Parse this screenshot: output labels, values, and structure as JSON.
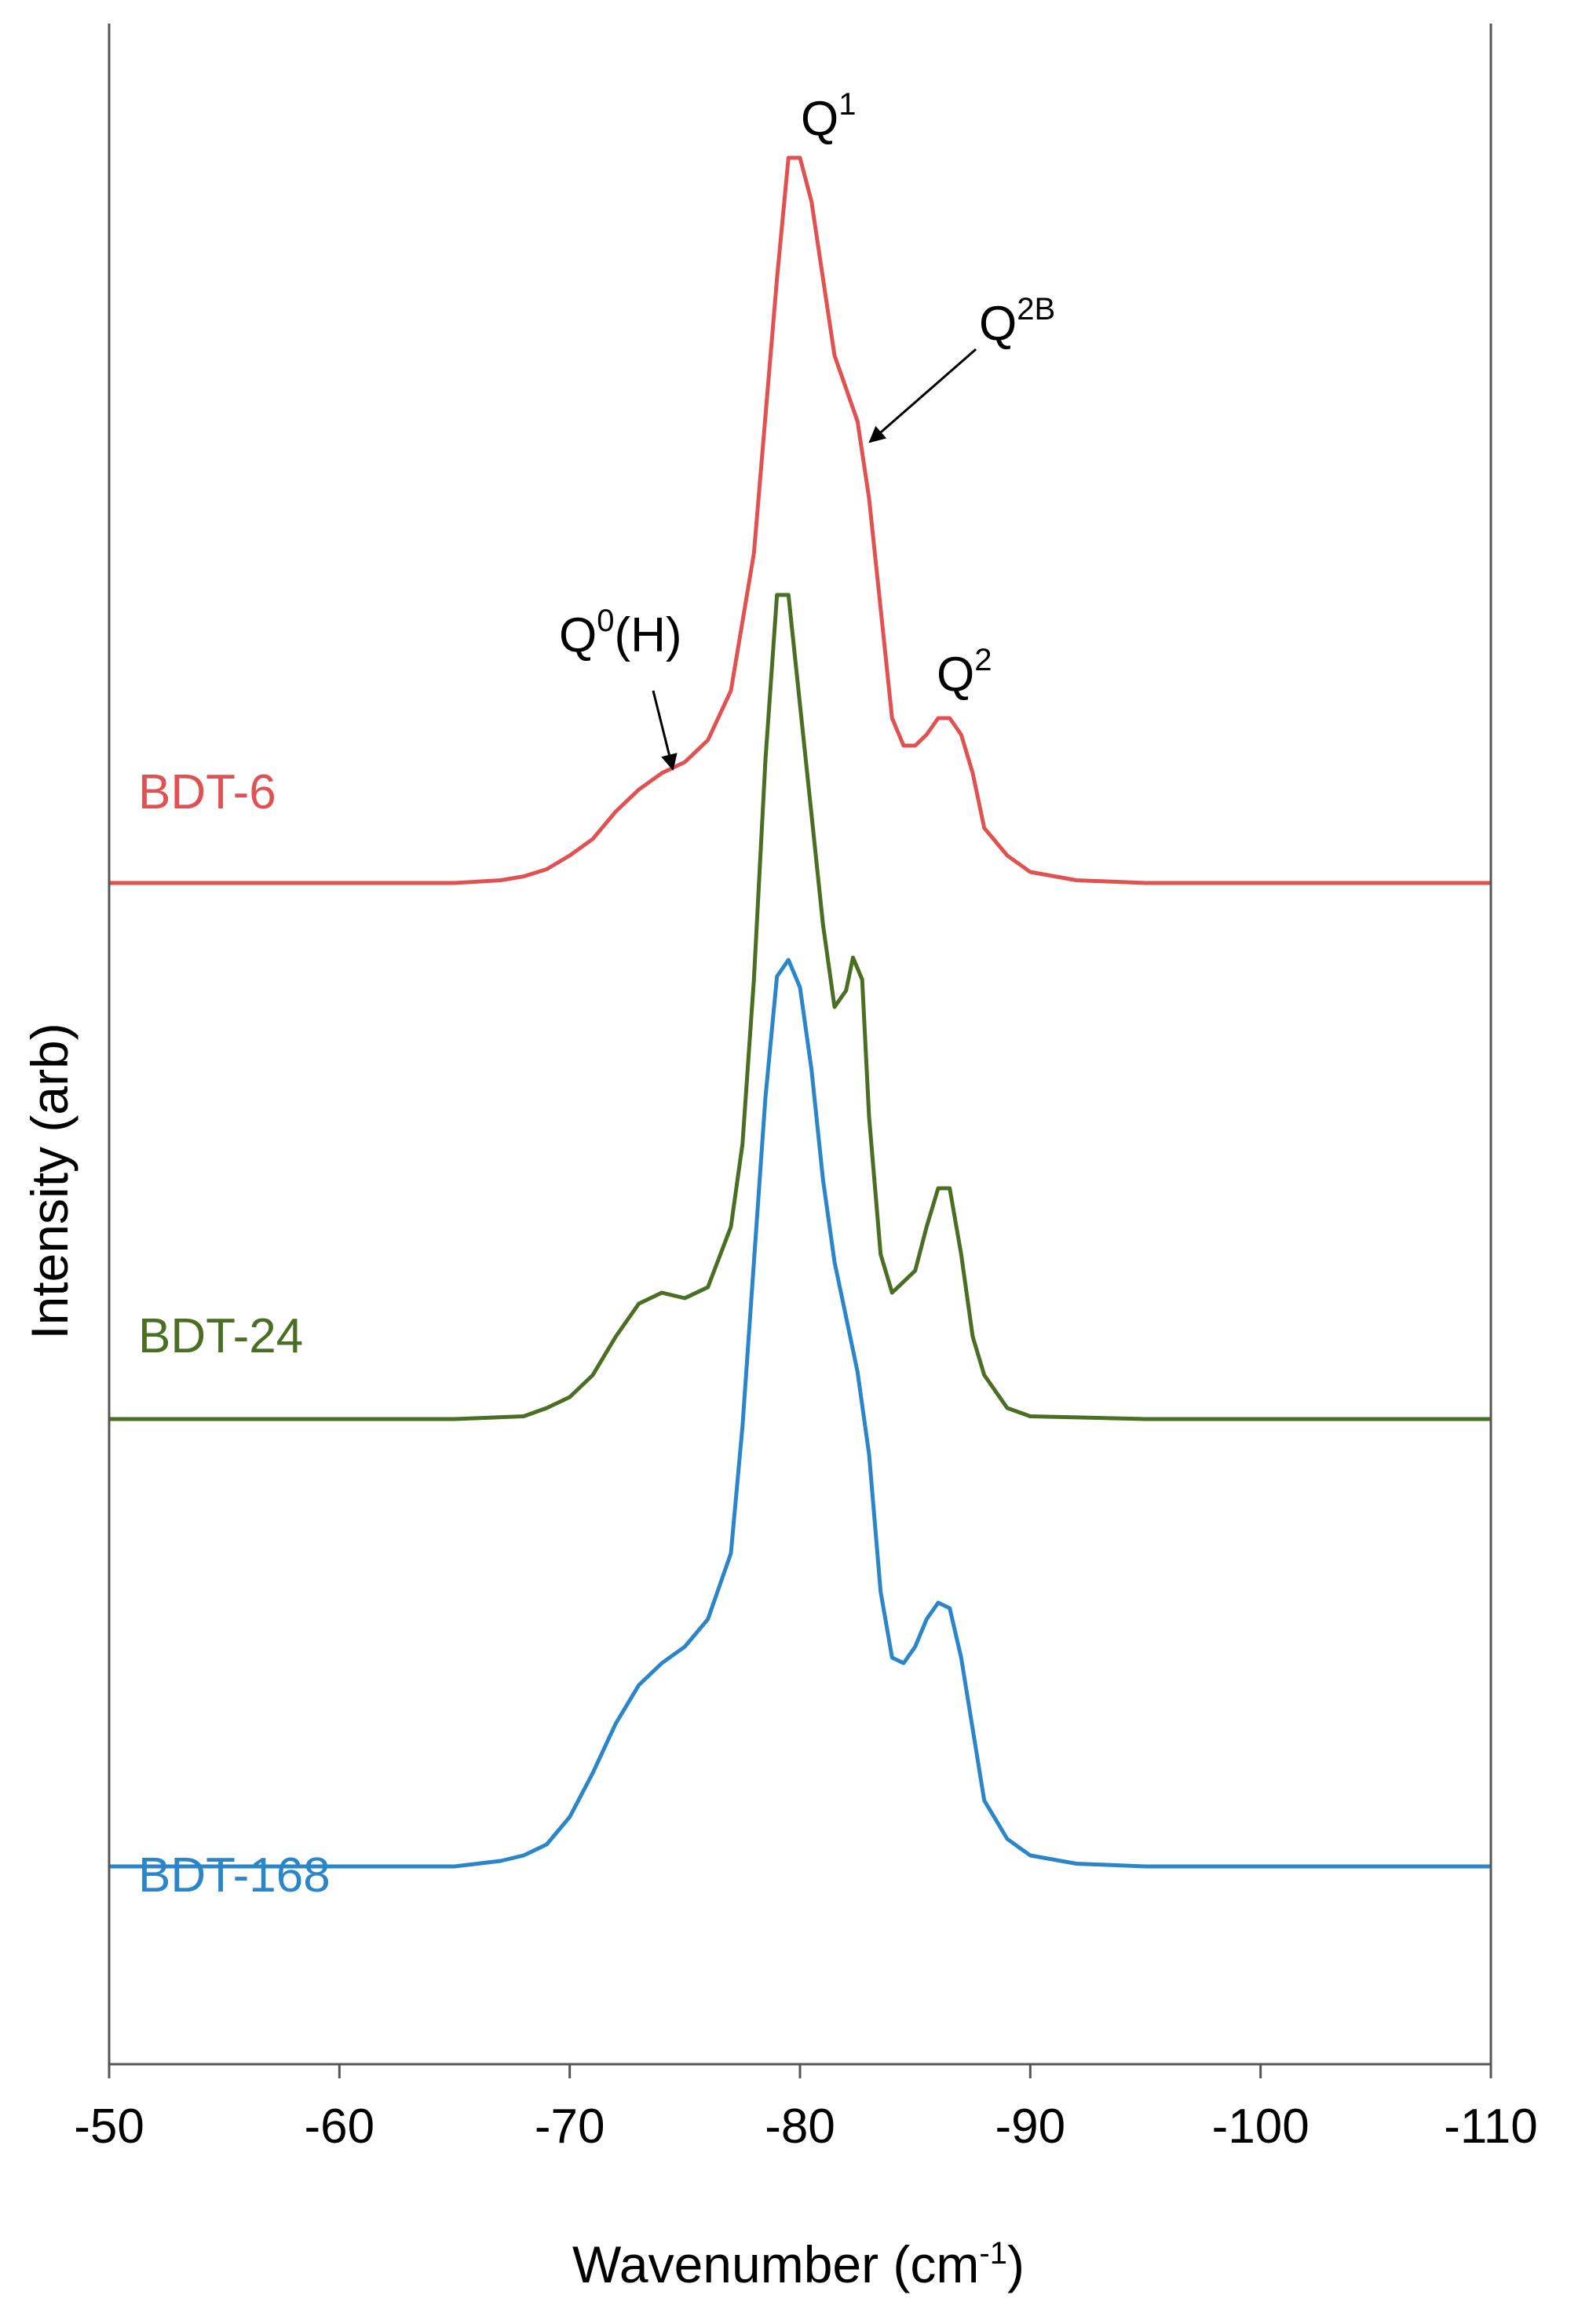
{
  "chart_data": {
    "type": "line",
    "title": "",
    "xlabel": "Wavenumber (cm",
    "xlabel_sup": "-1",
    "xlabel_end": ")",
    "ylabel": "Intensity (arb)",
    "xlim": [
      -50,
      -110
    ],
    "x_ticks": [
      -50,
      -60,
      -70,
      -80,
      -90,
      -100,
      -110
    ],
    "x_tick_labels": [
      "-50",
      "-60",
      "-70",
      "-80",
      "-90",
      "-100",
      "-110"
    ],
    "y_ticks_shown": false,
    "grid": false,
    "legend": "none",
    "series": [
      {
        "name": "BDT-6",
        "color": "#e05252",
        "offset": 2,
        "points": [
          [
            -50,
            0
          ],
          [
            -55,
            0
          ],
          [
            -60,
            0
          ],
          [
            -65,
            0
          ],
          [
            -67,
            0.005
          ],
          [
            -68,
            0.012
          ],
          [
            -69,
            0.025
          ],
          [
            -70,
            0.05
          ],
          [
            -71,
            0.08
          ],
          [
            -72,
            0.13
          ],
          [
            -73,
            0.17
          ],
          [
            -74,
            0.2
          ],
          [
            -75,
            0.22
          ],
          [
            -76,
            0.26
          ],
          [
            -77,
            0.35
          ],
          [
            -78,
            0.6
          ],
          [
            -78.5,
            0.85
          ],
          [
            -79,
            1.1
          ],
          [
            -79.5,
            1.32
          ],
          [
            -80,
            1.32
          ],
          [
            -80.5,
            1.24
          ],
          [
            -81,
            1.1
          ],
          [
            -81.5,
            0.96
          ],
          [
            -82,
            0.9
          ],
          [
            -82.5,
            0.84
          ],
          [
            -83,
            0.7
          ],
          [
            -83.5,
            0.5
          ],
          [
            -84,
            0.3
          ],
          [
            -84.5,
            0.25
          ],
          [
            -85,
            0.25
          ],
          [
            -85.5,
            0.27
          ],
          [
            -86,
            0.3
          ],
          [
            -86.5,
            0.3
          ],
          [
            -87,
            0.27
          ],
          [
            -87.5,
            0.2
          ],
          [
            -88,
            0.1
          ],
          [
            -89,
            0.05
          ],
          [
            -90,
            0.02
          ],
          [
            -92,
            0.005
          ],
          [
            -95,
            0
          ],
          [
            -100,
            0
          ],
          [
            -105,
            0
          ],
          [
            -110,
            0
          ]
        ]
      },
      {
        "name": "BDT-24",
        "color": "#4a6e22",
        "offset": 1,
        "points": [
          [
            -50,
            0
          ],
          [
            -55,
            0
          ],
          [
            -60,
            0
          ],
          [
            -65,
            0
          ],
          [
            -68,
            0.005
          ],
          [
            -69,
            0.02
          ],
          [
            -70,
            0.04
          ],
          [
            -71,
            0.08
          ],
          [
            -72,
            0.15
          ],
          [
            -73,
            0.21
          ],
          [
            -74,
            0.23
          ],
          [
            -75,
            0.22
          ],
          [
            -76,
            0.24
          ],
          [
            -77,
            0.35
          ],
          [
            -77.5,
            0.5
          ],
          [
            -78,
            0.8
          ],
          [
            -78.5,
            1.2
          ],
          [
            -79,
            1.5
          ],
          [
            -79.5,
            1.5
          ],
          [
            -80,
            1.3
          ],
          [
            -80.5,
            1.1
          ],
          [
            -81,
            0.9
          ],
          [
            -81.5,
            0.75
          ],
          [
            -82,
            0.78
          ],
          [
            -82.3,
            0.84
          ],
          [
            -82.7,
            0.8
          ],
          [
            -83,
            0.55
          ],
          [
            -83.5,
            0.3
          ],
          [
            -84,
            0.23
          ],
          [
            -85,
            0.27
          ],
          [
            -85.5,
            0.35
          ],
          [
            -86,
            0.42
          ],
          [
            -86.5,
            0.42
          ],
          [
            -87,
            0.3
          ],
          [
            -87.5,
            0.15
          ],
          [
            -88,
            0.08
          ],
          [
            -89,
            0.02
          ],
          [
            -90,
            0.005
          ],
          [
            -95,
            0
          ],
          [
            -100,
            0
          ],
          [
            -105,
            0
          ],
          [
            -110,
            0
          ]
        ]
      },
      {
        "name": "BDT-168",
        "color": "#2a86c8",
        "offset": 0,
        "points": [
          [
            -50,
            0
          ],
          [
            -55,
            0
          ],
          [
            -60,
            0
          ],
          [
            -65,
            0
          ],
          [
            -67,
            0.01
          ],
          [
            -68,
            0.02
          ],
          [
            -69,
            0.04
          ],
          [
            -70,
            0.09
          ],
          [
            -71,
            0.17
          ],
          [
            -72,
            0.26
          ],
          [
            -73,
            0.33
          ],
          [
            -74,
            0.37
          ],
          [
            -75,
            0.4
          ],
          [
            -76,
            0.45
          ],
          [
            -77,
            0.57
          ],
          [
            -77.5,
            0.8
          ],
          [
            -78,
            1.1
          ],
          [
            -78.5,
            1.4
          ],
          [
            -79,
            1.62
          ],
          [
            -79.5,
            1.65
          ],
          [
            -80,
            1.6
          ],
          [
            -80.5,
            1.45
          ],
          [
            -81,
            1.25
          ],
          [
            -81.5,
            1.1
          ],
          [
            -82,
            1.0
          ],
          [
            -82.5,
            0.9
          ],
          [
            -83,
            0.75
          ],
          [
            -83.5,
            0.5
          ],
          [
            -84,
            0.38
          ],
          [
            -84.5,
            0.37
          ],
          [
            -85,
            0.4
          ],
          [
            -85.5,
            0.45
          ],
          [
            -86,
            0.48
          ],
          [
            -86.5,
            0.47
          ],
          [
            -87,
            0.38
          ],
          [
            -87.5,
            0.25
          ],
          [
            -88,
            0.12
          ],
          [
            -89,
            0.05
          ],
          [
            -90,
            0.02
          ],
          [
            -92,
            0.005
          ],
          [
            -95,
            0
          ],
          [
            -100,
            0
          ],
          [
            -105,
            0
          ],
          [
            -110,
            0
          ]
        ]
      }
    ],
    "annotations": [
      {
        "base": "Q",
        "sup": "1",
        "after": ""
      },
      {
        "base": "Q",
        "sup": "2B",
        "after": ""
      },
      {
        "base": "Q",
        "sup": "0",
        "after": "(H)"
      },
      {
        "base": "Q",
        "sup": "2",
        "after": ""
      }
    ]
  }
}
